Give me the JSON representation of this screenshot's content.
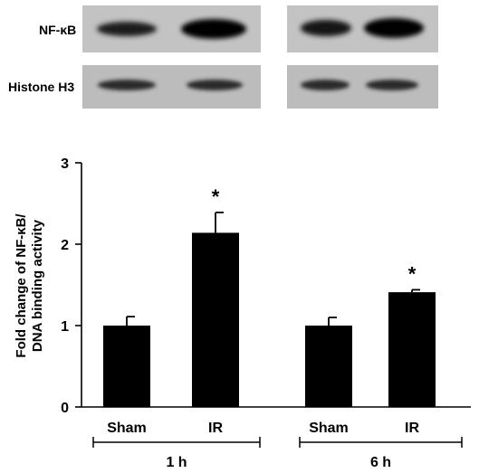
{
  "blot": {
    "rows": [
      {
        "label": "NF-κB"
      },
      {
        "label": "Histone H3"
      }
    ]
  },
  "chart_data": {
    "type": "bar",
    "ylabel": "Fold change of NF-κB/ DNA binding activity",
    "ylabel_lines": [
      "Fold change of NF-κB/",
      "DNA binding activity"
    ],
    "ylim": [
      0,
      3
    ],
    "yticks": [
      0,
      1,
      2,
      3
    ],
    "groups": [
      {
        "label": "1 h",
        "categories": [
          "Sham",
          "IR"
        ]
      },
      {
        "label": "6 h",
        "categories": [
          "Sham",
          "IR"
        ]
      }
    ],
    "bars": [
      {
        "group": "1 h",
        "category": "Sham",
        "value": 1.0,
        "error": 0.11,
        "sig": ""
      },
      {
        "group": "1 h",
        "category": "IR",
        "value": 2.14,
        "error": 0.25,
        "sig": "*"
      },
      {
        "group": "6 h",
        "category": "Sham",
        "value": 1.0,
        "error": 0.1,
        "sig": ""
      },
      {
        "group": "6 h",
        "category": "IR",
        "value": 1.41,
        "error": 0.03,
        "sig": "*"
      }
    ],
    "bar_color": "#000000",
    "grid": false
  }
}
